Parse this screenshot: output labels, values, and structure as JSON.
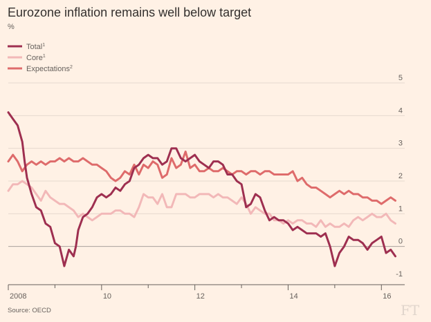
{
  "chart_data": {
    "type": "line",
    "title": "Eurozone inflation remains well below target",
    "ylabel": "%",
    "xlabel": "",
    "ylim": [
      -1,
      5
    ],
    "y_ticks": [
      5,
      4,
      3,
      2,
      1,
      0,
      -1
    ],
    "x_range": [
      2008.0,
      2016.5
    ],
    "x_ticks": [
      {
        "value": 2008,
        "label": "2008"
      },
      {
        "value": 2010,
        "label": "10"
      },
      {
        "value": 2012,
        "label": "12"
      },
      {
        "value": 2014,
        "label": "14"
      },
      {
        "value": 2016,
        "label": "16"
      }
    ],
    "legend": [
      {
        "name": "Total",
        "superscript": "1"
      },
      {
        "name": "Core",
        "superscript": "1"
      },
      {
        "name": "Expectations",
        "superscript": "2"
      }
    ],
    "source": "Source: OECD",
    "logo": "FT",
    "series": [
      {
        "name": "Total",
        "color": "#9e2f50",
        "x": [
          2008.0,
          2008.1,
          2008.2,
          2008.3,
          2008.35,
          2008.4,
          2008.5,
          2008.6,
          2008.7,
          2008.8,
          2008.9,
          2009.0,
          2009.1,
          2009.2,
          2009.3,
          2009.4,
          2009.45,
          2009.5,
          2009.6,
          2009.7,
          2009.8,
          2009.9,
          2010.0,
          2010.1,
          2010.2,
          2010.3,
          2010.4,
          2010.5,
          2010.6,
          2010.7,
          2010.8,
          2010.9,
          2011.0,
          2011.1,
          2011.2,
          2011.3,
          2011.4,
          2011.5,
          2011.6,
          2011.7,
          2011.8,
          2011.9,
          2012.0,
          2012.1,
          2012.2,
          2012.3,
          2012.4,
          2012.5,
          2012.6,
          2012.7,
          2012.8,
          2012.9,
          2013.0,
          2013.1,
          2013.2,
          2013.3,
          2013.4,
          2013.5,
          2013.6,
          2013.7,
          2013.8,
          2013.9,
          2014.0,
          2014.1,
          2014.2,
          2014.3,
          2014.4,
          2014.5,
          2014.6,
          2014.7,
          2014.8,
          2014.9,
          2015.0,
          2015.1,
          2015.2,
          2015.3,
          2015.4,
          2015.5,
          2015.6,
          2015.7,
          2015.8,
          2015.9,
          2016.0,
          2016.1,
          2016.2,
          2016.3
        ],
        "y": [
          4.1,
          3.9,
          3.7,
          3.2,
          2.6,
          2.1,
          1.6,
          1.2,
          1.1,
          0.7,
          0.6,
          0.1,
          0.0,
          -0.6,
          -0.1,
          -0.3,
          0.0,
          0.5,
          0.9,
          1.0,
          1.2,
          1.5,
          1.6,
          1.5,
          1.6,
          1.8,
          1.7,
          1.9,
          2.0,
          2.4,
          2.5,
          2.7,
          2.8,
          2.7,
          2.7,
          2.5,
          2.6,
          3.0,
          3.0,
          2.7,
          2.6,
          2.7,
          2.8,
          2.6,
          2.5,
          2.4,
          2.6,
          2.6,
          2.5,
          2.2,
          2.2,
          2.0,
          1.9,
          1.2,
          1.3,
          1.6,
          1.5,
          1.1,
          0.8,
          0.9,
          0.8,
          0.8,
          0.7,
          0.5,
          0.6,
          0.5,
          0.4,
          0.4,
          0.4,
          0.3,
          0.4,
          0.0,
          -0.6,
          -0.2,
          0.0,
          0.3,
          0.2,
          0.2,
          0.1,
          -0.1,
          0.1,
          0.2,
          0.3,
          -0.2,
          -0.1,
          -0.3
        ]
      },
      {
        "name": "Core",
        "color": "#f2b8b8",
        "x": [
          2008.0,
          2008.1,
          2008.2,
          2008.3,
          2008.4,
          2008.5,
          2008.6,
          2008.7,
          2008.8,
          2008.9,
          2009.0,
          2009.1,
          2009.2,
          2009.3,
          2009.4,
          2009.5,
          2009.6,
          2009.7,
          2009.8,
          2009.9,
          2010.0,
          2010.1,
          2010.2,
          2010.3,
          2010.4,
          2010.5,
          2010.6,
          2010.7,
          2010.8,
          2010.9,
          2011.0,
          2011.1,
          2011.2,
          2011.3,
          2011.4,
          2011.5,
          2011.6,
          2011.7,
          2011.8,
          2011.9,
          2012.0,
          2012.1,
          2012.2,
          2012.3,
          2012.4,
          2012.5,
          2012.6,
          2012.7,
          2012.8,
          2012.9,
          2013.0,
          2013.1,
          2013.2,
          2013.3,
          2013.4,
          2013.5,
          2013.6,
          2013.7,
          2013.8,
          2013.9,
          2014.0,
          2014.1,
          2014.2,
          2014.3,
          2014.4,
          2014.5,
          2014.6,
          2014.7,
          2014.8,
          2014.9,
          2015.0,
          2015.1,
          2015.2,
          2015.3,
          2015.4,
          2015.5,
          2015.6,
          2015.7,
          2015.8,
          2015.9,
          2016.0,
          2016.1,
          2016.2,
          2016.3
        ],
        "y": [
          1.7,
          1.9,
          1.9,
          2.0,
          1.9,
          1.8,
          1.6,
          1.4,
          1.7,
          1.5,
          1.4,
          1.3,
          1.3,
          1.2,
          1.1,
          0.9,
          1.0,
          0.9,
          0.8,
          0.9,
          1.0,
          1.0,
          1.0,
          1.1,
          1.1,
          1.0,
          1.0,
          0.9,
          1.2,
          1.6,
          1.5,
          1.5,
          1.3,
          1.6,
          1.2,
          1.2,
          1.6,
          1.6,
          1.6,
          1.5,
          1.5,
          1.6,
          1.6,
          1.6,
          1.5,
          1.6,
          1.5,
          1.5,
          1.4,
          1.3,
          1.5,
          1.3,
          1.0,
          1.2,
          1.1,
          1.0,
          1.0,
          0.8,
          0.8,
          0.7,
          0.8,
          0.7,
          0.8,
          0.8,
          0.7,
          0.7,
          0.6,
          0.8,
          0.6,
          0.7,
          0.6,
          0.6,
          0.7,
          0.6,
          0.8,
          0.9,
          0.8,
          0.9,
          1.0,
          0.9,
          0.9,
          1.0,
          0.8,
          0.7
        ]
      },
      {
        "name": "Expectations",
        "color": "#de6b6b",
        "x": [
          2008.0,
          2008.1,
          2008.2,
          2008.3,
          2008.4,
          2008.5,
          2008.6,
          2008.7,
          2008.8,
          2008.9,
          2009.0,
          2009.1,
          2009.2,
          2009.3,
          2009.4,
          2009.5,
          2009.6,
          2009.7,
          2009.8,
          2009.9,
          2010.0,
          2010.1,
          2010.2,
          2010.3,
          2010.4,
          2010.5,
          2010.6,
          2010.7,
          2010.8,
          2010.9,
          2011.0,
          2011.1,
          2011.2,
          2011.3,
          2011.4,
          2011.5,
          2011.6,
          2011.7,
          2011.8,
          2011.9,
          2012.0,
          2012.1,
          2012.2,
          2012.3,
          2012.4,
          2012.5,
          2012.6,
          2012.7,
          2012.8,
          2012.9,
          2013.0,
          2013.1,
          2013.2,
          2013.3,
          2013.4,
          2013.5,
          2013.6,
          2013.7,
          2013.8,
          2013.9,
          2014.0,
          2014.1,
          2014.2,
          2014.3,
          2014.4,
          2014.5,
          2014.6,
          2014.7,
          2014.8,
          2014.9,
          2015.0,
          2015.1,
          2015.2,
          2015.3,
          2015.4,
          2015.5,
          2015.6,
          2015.7,
          2015.8,
          2015.9,
          2016.0,
          2016.1,
          2016.2,
          2016.3
        ],
        "y": [
          2.6,
          2.8,
          2.6,
          2.3,
          2.5,
          2.6,
          2.5,
          2.6,
          2.5,
          2.6,
          2.6,
          2.7,
          2.6,
          2.7,
          2.6,
          2.6,
          2.7,
          2.6,
          2.5,
          2.5,
          2.4,
          2.3,
          2.1,
          2.0,
          2.1,
          2.3,
          2.2,
          2.5,
          2.2,
          2.5,
          2.4,
          2.6,
          2.5,
          2.1,
          2.2,
          2.7,
          2.4,
          2.5,
          2.9,
          2.4,
          2.5,
          2.3,
          2.3,
          2.4,
          2.3,
          2.3,
          2.4,
          2.3,
          2.2,
          2.3,
          2.3,
          2.2,
          2.3,
          2.3,
          2.2,
          2.3,
          2.3,
          2.2,
          2.2,
          2.2,
          2.2,
          2.3,
          2.0,
          2.1,
          1.9,
          1.8,
          1.8,
          1.7,
          1.6,
          1.5,
          1.6,
          1.7,
          1.6,
          1.7,
          1.6,
          1.6,
          1.5,
          1.5,
          1.4,
          1.4,
          1.3,
          1.4,
          1.5,
          1.4
        ]
      }
    ]
  }
}
